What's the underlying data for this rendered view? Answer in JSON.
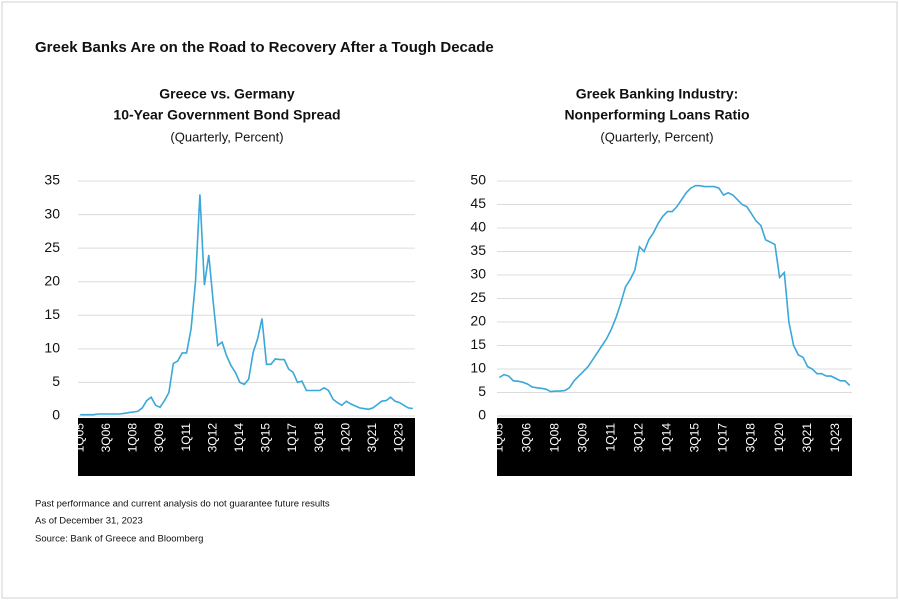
{
  "title": "Greek Banks Are on the Road to Recovery After a Tough Decade",
  "notes": [
    "Past performance and current analysis do not guarantee future results",
    "As of December 31, 2023",
    "Source: Bank of Greece and Bloomberg"
  ],
  "chart_data": [
    {
      "type": "line",
      "title": [
        "Greece vs. Germany",
        "10-Year Government Bond Spread"
      ],
      "subtitle": "(Quarterly, Percent)",
      "categories": [
        "1Q05",
        null,
        null,
        null,
        null,
        null,
        "3Q06",
        null,
        null,
        null,
        null,
        null,
        "1Q08",
        null,
        null,
        null,
        null,
        null,
        "3Q09",
        null,
        null,
        null,
        null,
        null,
        "1Q11",
        null,
        null,
        null,
        null,
        null,
        "3Q12",
        null,
        null,
        null,
        null,
        null,
        "1Q14",
        null,
        null,
        null,
        null,
        null,
        "3Q15",
        null,
        null,
        null,
        null,
        null,
        "1Q17",
        null,
        null,
        null,
        null,
        null,
        "3Q18",
        null,
        null,
        null,
        null,
        null,
        "1Q20",
        null,
        null,
        null,
        null,
        null,
        "3Q21",
        null,
        null,
        null,
        null,
        null,
        "1Q23",
        null,
        null,
        null
      ],
      "values": [
        0.2,
        0.2,
        0.2,
        0.2,
        0.3,
        0.3,
        0.3,
        0.3,
        0.3,
        0.3,
        0.4,
        0.5,
        0.6,
        0.7,
        1.2,
        2.3,
        2.8,
        1.6,
        1.3,
        2.3,
        3.5,
        7.8,
        8.2,
        9.4,
        9.4,
        13,
        20,
        33,
        19.5,
        24,
        17,
        10.5,
        11,
        9,
        7.5,
        6.5,
        5,
        4.7,
        5.5,
        9.5,
        11.5,
        14.5,
        7.7,
        7.7,
        8.5,
        8.4,
        8.4,
        7,
        6.5,
        5,
        5.2,
        3.8,
        3.8,
        3.8,
        3.8,
        4.2,
        3.8,
        2.5,
        2,
        1.6,
        2.2,
        1.8,
        1.5,
        1.2,
        1.1,
        1,
        1.2,
        1.7,
        2.2,
        2.3,
        2.8,
        2.2,
        2,
        1.6,
        1.2,
        1.1
      ],
      "color": "#3aa8d8",
      "ylim": [
        0,
        35
      ],
      "yticks": [
        0,
        5,
        10,
        15,
        20,
        25,
        30,
        35
      ],
      "grid": true
    },
    {
      "type": "line",
      "title": [
        "Greek Banking Industry:",
        "Nonperforming Loans Ratio"
      ],
      "subtitle": "(Quarterly, Percent)",
      "categories": [
        "1Q05",
        null,
        null,
        null,
        null,
        null,
        "3Q06",
        null,
        null,
        null,
        null,
        null,
        "1Q08",
        null,
        null,
        null,
        null,
        null,
        "3Q09",
        null,
        null,
        null,
        null,
        null,
        "1Q11",
        null,
        null,
        null,
        null,
        null,
        "3Q12",
        null,
        null,
        null,
        null,
        null,
        "1Q14",
        null,
        null,
        null,
        null,
        null,
        "3Q15",
        null,
        null,
        null,
        null,
        null,
        "1Q17",
        null,
        null,
        null,
        null,
        null,
        "3Q18",
        null,
        null,
        null,
        null,
        null,
        "1Q20",
        null,
        null,
        null,
        null,
        null,
        "3Q21",
        null,
        null,
        null,
        null,
        null,
        "1Q23",
        null,
        null,
        null
      ],
      "values": [
        8.2,
        8.8,
        8.5,
        7.5,
        7.4,
        7.2,
        6.8,
        6.2,
        6,
        5.9,
        5.7,
        5.2,
        5.3,
        5.3,
        5.4,
        6,
        7.5,
        8.5,
        9.5,
        10.5,
        12,
        13.5,
        15,
        16.5,
        18.5,
        21,
        24,
        27.5,
        29,
        31,
        36,
        35,
        37.5,
        39,
        41,
        42.5,
        43.5,
        43.5,
        44.5,
        46,
        47.5,
        48.5,
        49,
        49,
        48.8,
        48.8,
        48.8,
        48.5,
        47,
        47.5,
        47,
        46,
        45,
        44.5,
        43,
        41.5,
        40.5,
        37.5,
        37,
        36.5,
        29.5,
        30.5,
        20,
        15,
        13,
        12.5,
        10.5,
        10,
        9,
        9,
        8.5,
        8.5,
        8,
        7.5,
        7.5,
        6.5
      ],
      "color": "#3aa8d8",
      "ylim": [
        0,
        50
      ],
      "yticks": [
        0,
        5,
        10,
        15,
        20,
        25,
        30,
        35,
        40,
        45,
        50
      ],
      "grid": true
    }
  ]
}
